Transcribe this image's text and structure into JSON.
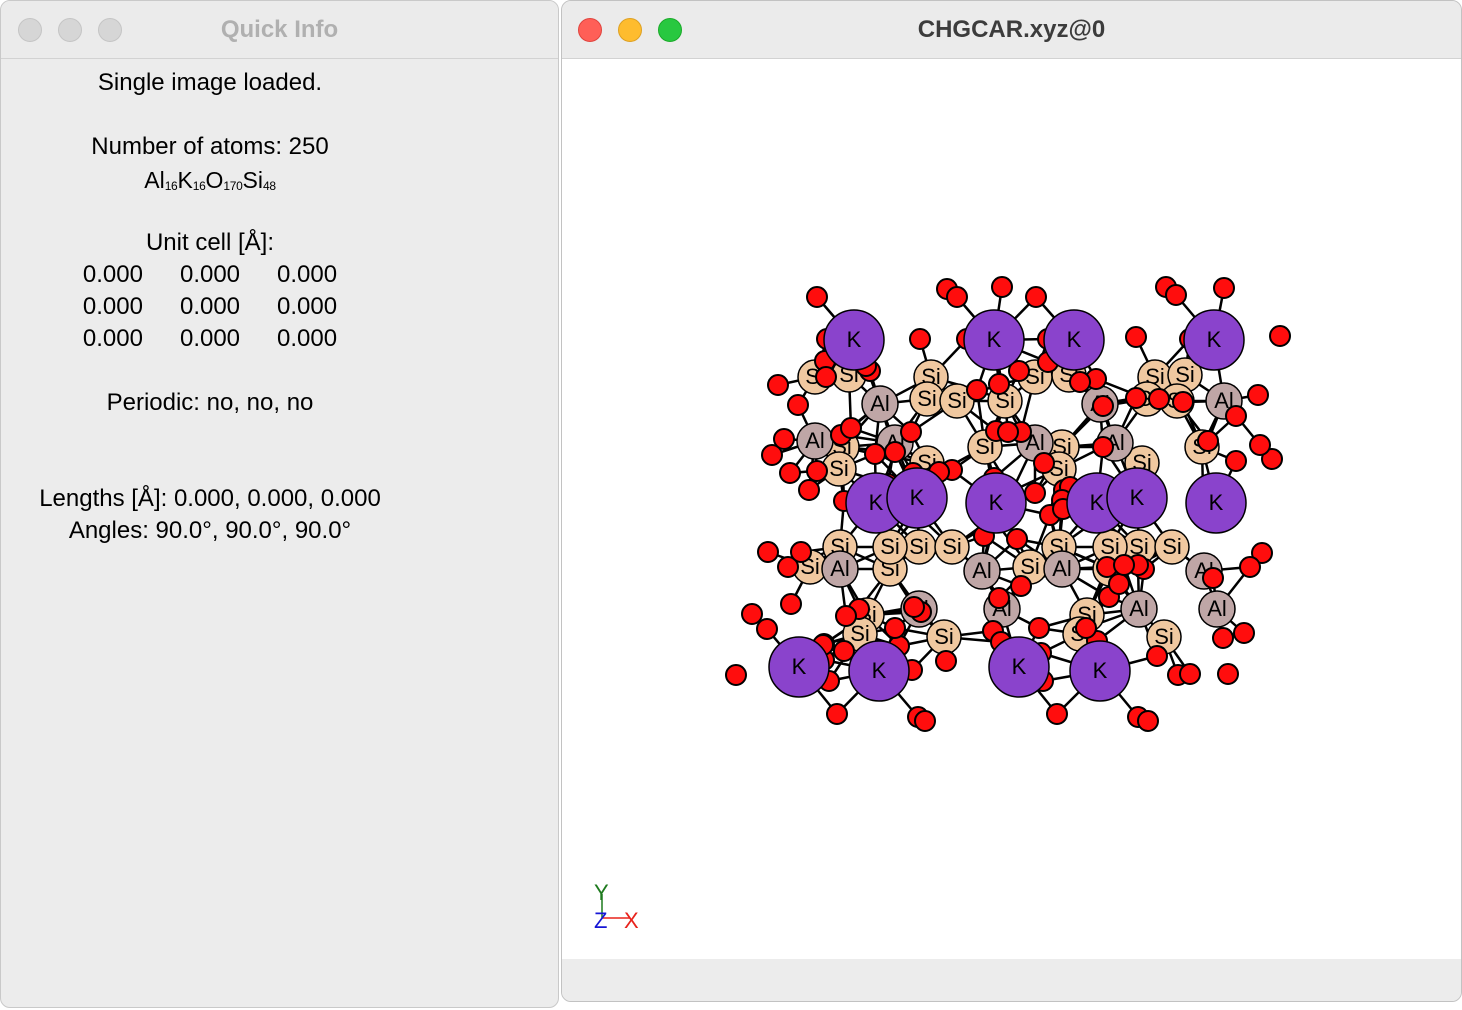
{
  "quick_info": {
    "window_title": "Quick Info",
    "status": "Single image loaded.",
    "atoms_label": "Number of atoms: 250",
    "formula": [
      {
        "el": "Al",
        "n": "16"
      },
      {
        "el": "K",
        "n": "16"
      },
      {
        "el": "O",
        "n": "170"
      },
      {
        "el": "Si",
        "n": "48"
      }
    ],
    "unit_cell_label": "Unit cell [Å]:",
    "unit_cell": [
      [
        "0.000",
        "0.000",
        "0.000"
      ],
      [
        "0.000",
        "0.000",
        "0.000"
      ],
      [
        "0.000",
        "0.000",
        "0.000"
      ]
    ],
    "periodic": "Periodic: no, no, no",
    "lengths": "Lengths [Å]: 0.000, 0.000, 0.000",
    "angles": "Angles: 90.0°, 90.0°, 90.0°"
  },
  "viewer": {
    "window_title": "CHGCAR.xyz@0",
    "axes": {
      "y": "Y",
      "z": "Z",
      "x": "X"
    }
  },
  "colors": {
    "K": "#8a43cc",
    "Al": "#bfa6a6",
    "Si": "#f0c8a0",
    "O": "#ff0d0d",
    "axis_x": "#e8231c",
    "axis_y": "#1e7a1e",
    "axis_z": "#1616d6"
  },
  "atom_labels": {
    "K": "K",
    "Al": "Al",
    "Si": "Si"
  }
}
